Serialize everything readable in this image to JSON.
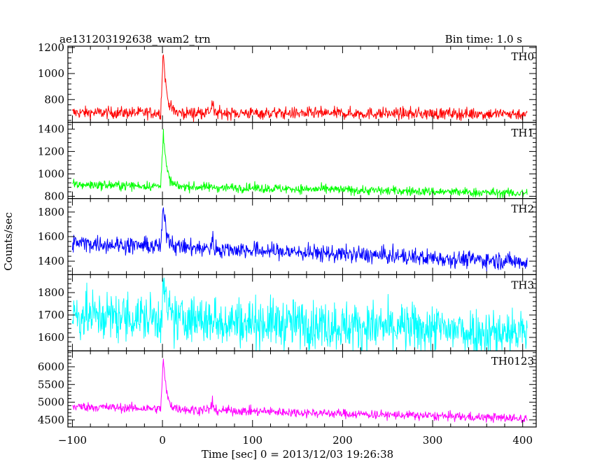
{
  "chart_data": {
    "type": "line",
    "title_left": "ae131203192638_wam2_trn",
    "title_right": "Bin time: 1.0 s",
    "xlabel": "Time [sec] 0 = 2013/12/03 19:26:38",
    "ylabel": "Counts/sec",
    "xlim": [
      -105,
      415
    ],
    "x_ticks": [
      -100,
      0,
      100,
      200,
      300,
      400
    ],
    "x_tick_labels": [
      "−100",
      "0",
      "100",
      "200",
      "300",
      "400"
    ],
    "x_start": -100,
    "x_end": 405,
    "grid": false,
    "panels": [
      {
        "name": "TH0",
        "color": "#ff0000",
        "ylim": [
          625,
          1210
        ],
        "y_ticks": [
          800,
          1000,
          1200
        ],
        "baseline_start": 700,
        "baseline_end": 690,
        "noise": 50,
        "peak": 1210,
        "peak_decay": 3.5,
        "bumps": [
          [
            55,
            90
          ]
        ]
      },
      {
        "name": "TH1",
        "color": "#00ff00",
        "ylim": [
          780,
          1460
        ],
        "y_ticks": [
          800,
          1000,
          1200,
          1400
        ],
        "baseline_start": 905,
        "baseline_end": 825,
        "noise": 45,
        "peak": 1440,
        "peak_decay": 3.5,
        "bumps": []
      },
      {
        "name": "TH2",
        "color": "#0000ff",
        "ylim": [
          1290,
          1910
        ],
        "y_ticks": [
          1400,
          1600,
          1800
        ],
        "baseline_start": 1550,
        "baseline_end": 1395,
        "noise": 75,
        "peak": 1880,
        "peak_decay": 4,
        "bumps": [
          [
            55,
            120
          ]
        ]
      },
      {
        "name": "TH3",
        "color": "#00ffff",
        "ylim": [
          1540,
          1880
        ],
        "y_ticks": [
          1600,
          1700,
          1800
        ],
        "baseline_start": 1700,
        "baseline_end": 1620,
        "noise": 120,
        "peak": 1860,
        "peak_decay": 3,
        "bumps": []
      },
      {
        "name": "TH0123",
        "color": "#ff00ff",
        "ylim": [
          4300,
          6450
        ],
        "y_ticks": [
          4500,
          5000,
          5500,
          6000
        ],
        "baseline_start": 4880,
        "baseline_end": 4540,
        "noise": 140,
        "peak": 6400,
        "peak_decay": 3.5,
        "bumps": [
          [
            55,
            350
          ]
        ]
      }
    ]
  }
}
